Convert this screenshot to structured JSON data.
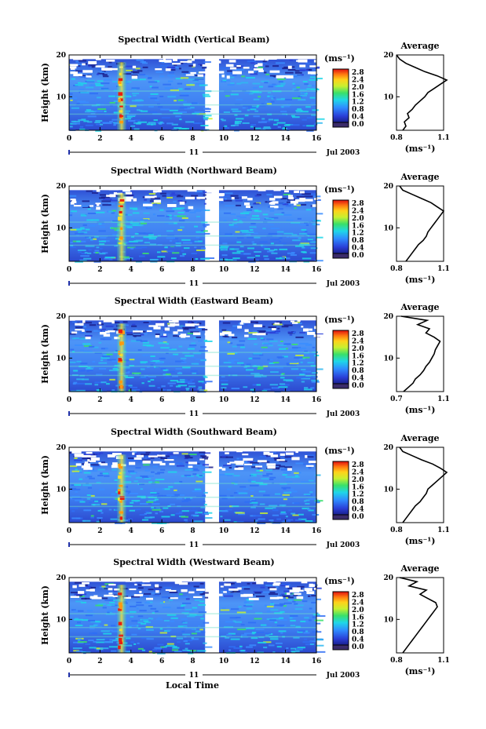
{
  "figure": {
    "xaxis_label": "Local Time",
    "date_label": "Jul 2003",
    "day_label": "11",
    "colorbar_unit": "(ms⁻¹)",
    "avg_title": "Average",
    "avg_unit": "(ms⁻¹)",
    "ylabel": "Height (km)"
  },
  "chart_data": [
    {
      "type": "heatmap",
      "title": "Spectral Width (Vertical Beam)",
      "xlabel": "Local Time",
      "ylabel": "Height (km)",
      "xlim": [
        0,
        16
      ],
      "ylim": [
        2,
        20
      ],
      "xticks": [
        "0",
        "2",
        "4",
        "6",
        "8",
        "10",
        "12",
        "14",
        "16"
      ],
      "yticks": [
        "10",
        "20"
      ],
      "colorbar": {
        "label": "(ms⁻¹)",
        "min": 0.0,
        "max": 2.8,
        "ticks": [
          "2.8",
          "2.4",
          "2.0",
          "1.6",
          "1.2",
          "0.8",
          "0.4",
          "0.0"
        ]
      },
      "data_gap_hours": [
        8.8,
        9.7
      ],
      "data_end_hour": 16,
      "enhanced_width_hours": [
        3.2,
        3.6
      ],
      "average_profile": {
        "xlim": [
          0.8,
          1.1
        ],
        "xticks": [
          "0.8",
          "1.1"
        ],
        "yticks": [
          "10",
          "20"
        ],
        "height_km": [
          2,
          3,
          4,
          5,
          6,
          7,
          8,
          9,
          10,
          11,
          12,
          13,
          14,
          15,
          16,
          17,
          18,
          19,
          20
        ],
        "width_ms": [
          0.84,
          0.86,
          0.85,
          0.88,
          0.87,
          0.9,
          0.92,
          0.95,
          0.98,
          1.0,
          1.04,
          1.08,
          1.12,
          1.06,
          0.98,
          0.92,
          0.86,
          0.82,
          0.8
        ]
      }
    },
    {
      "type": "heatmap",
      "title": "Spectral Width (Northward Beam)",
      "xlabel": "Local Time",
      "ylabel": "Height (km)",
      "xlim": [
        0,
        16
      ],
      "ylim": [
        2,
        20
      ],
      "xticks": [
        "0",
        "2",
        "4",
        "6",
        "8",
        "10",
        "12",
        "14",
        "16"
      ],
      "yticks": [
        "10",
        "20"
      ],
      "colorbar": {
        "label": "(ms⁻¹)",
        "min": 0.0,
        "max": 2.8,
        "ticks": [
          "2.8",
          "2.4",
          "2.0",
          "1.6",
          "1.2",
          "0.8",
          "0.4",
          "0.0"
        ]
      },
      "data_gap_hours": [
        8.8,
        9.7
      ],
      "data_end_hour": 16,
      "enhanced_width_hours": [
        3.2,
        3.6
      ],
      "average_profile": {
        "xlim": [
          0.8,
          1.1
        ],
        "xticks": [
          "0.8",
          "1.1"
        ],
        "yticks": [
          "10",
          "20"
        ],
        "height_km": [
          2,
          3,
          4,
          5,
          6,
          7,
          8,
          9,
          10,
          11,
          12,
          13,
          14,
          15,
          16,
          17,
          18,
          19,
          20
        ],
        "width_ms": [
          0.86,
          0.88,
          0.9,
          0.92,
          0.94,
          0.97,
          0.99,
          1.0,
          1.02,
          1.04,
          1.06,
          1.08,
          1.1,
          1.06,
          1.02,
          0.96,
          0.9,
          0.84,
          0.82
        ]
      }
    },
    {
      "type": "heatmap",
      "title": "Spectral Width (Eastward Beam)",
      "xlabel": "Local Time",
      "ylabel": "Height (km)",
      "xlim": [
        0,
        16
      ],
      "ylim": [
        2,
        20
      ],
      "xticks": [
        "0",
        "2",
        "4",
        "6",
        "8",
        "10",
        "12",
        "14",
        "16"
      ],
      "yticks": [
        "10",
        "20"
      ],
      "colorbar": {
        "label": "(ms⁻¹)",
        "min": 0.0,
        "max": 2.8,
        "ticks": [
          "2.8",
          "2.4",
          "2.0",
          "1.6",
          "1.2",
          "0.8",
          "0.4",
          "0.0"
        ]
      },
      "data_gap_hours": [
        8.8,
        9.7
      ],
      "data_end_hour": 16,
      "enhanced_width_hours": [
        3.2,
        3.6
      ],
      "average_profile": {
        "xlim": [
          0.7,
          1.1
        ],
        "xticks": [
          "0.7",
          "1.1"
        ],
        "yticks": [
          "10",
          "20"
        ],
        "height_km": [
          2,
          3,
          4,
          5,
          6,
          7,
          8,
          9,
          10,
          11,
          12,
          13,
          14,
          15,
          16,
          17,
          18,
          19,
          20
        ],
        "width_ms": [
          0.76,
          0.8,
          0.84,
          0.86,
          0.9,
          0.93,
          0.95,
          0.98,
          1.0,
          1.02,
          1.03,
          1.05,
          1.07,
          1.02,
          0.95,
          0.98,
          0.88,
          0.96,
          0.74
        ]
      }
    },
    {
      "type": "heatmap",
      "title": "Spectral Width (Southward Beam)",
      "xlabel": "Local Time",
      "ylabel": "Height (km)",
      "xlim": [
        0,
        16
      ],
      "ylim": [
        2,
        20
      ],
      "xticks": [
        "0",
        "2",
        "4",
        "6",
        "8",
        "10",
        "12",
        "14",
        "16"
      ],
      "yticks": [
        "10",
        "20"
      ],
      "colorbar": {
        "label": "(ms⁻¹)",
        "min": 0.0,
        "max": 2.8,
        "ticks": [
          "2.8",
          "2.4",
          "2.0",
          "1.6",
          "1.2",
          "0.8",
          "0.4",
          "0.0"
        ]
      },
      "data_gap_hours": [
        8.8,
        9.7
      ],
      "data_end_hour": 16,
      "enhanced_width_hours": [
        3.2,
        3.6
      ],
      "average_profile": {
        "xlim": [
          0.8,
          1.1
        ],
        "xticks": [
          "0.8",
          "1.1"
        ],
        "yticks": [
          "10",
          "20"
        ],
        "height_km": [
          2,
          3,
          4,
          5,
          6,
          7,
          8,
          9,
          10,
          11,
          12,
          13,
          14,
          15,
          16,
          17,
          18,
          19,
          20
        ],
        "width_ms": [
          0.84,
          0.86,
          0.88,
          0.9,
          0.92,
          0.95,
          0.97,
          0.99,
          1.0,
          1.03,
          1.06,
          1.09,
          1.12,
          1.08,
          1.03,
          0.96,
          0.9,
          0.84,
          0.82
        ]
      }
    },
    {
      "type": "heatmap",
      "title": "Spectral Width (Westward Beam)",
      "xlabel": "Local Time",
      "ylabel": "Height (km)",
      "xlim": [
        0,
        16
      ],
      "ylim": [
        2,
        20
      ],
      "xticks": [
        "0",
        "2",
        "4",
        "6",
        "8",
        "10",
        "12",
        "14",
        "16"
      ],
      "yticks": [
        "10",
        "20"
      ],
      "colorbar": {
        "label": "(ms⁻¹)",
        "min": 0.0,
        "max": 2.8,
        "ticks": [
          "2.8",
          "2.4",
          "2.0",
          "1.6",
          "1.2",
          "0.8",
          "0.4",
          "0.0"
        ]
      },
      "data_gap_hours": [
        8.8,
        9.7
      ],
      "data_end_hour": 16,
      "enhanced_width_hours": [
        3.2,
        3.6
      ],
      "average_profile": {
        "xlim": [
          0.8,
          1.1
        ],
        "xticks": [
          "0.8",
          "1.1"
        ],
        "yticks": [
          "10",
          "20"
        ],
        "height_km": [
          2,
          3,
          4,
          5,
          6,
          7,
          8,
          9,
          10,
          11,
          12,
          13,
          14,
          15,
          16,
          17,
          18,
          19,
          20
        ],
        "width_ms": [
          0.84,
          0.86,
          0.88,
          0.9,
          0.92,
          0.94,
          0.96,
          0.98,
          1.0,
          1.02,
          1.04,
          1.06,
          1.05,
          1.0,
          0.95,
          0.99,
          0.88,
          0.93,
          0.82
        ]
      }
    }
  ]
}
